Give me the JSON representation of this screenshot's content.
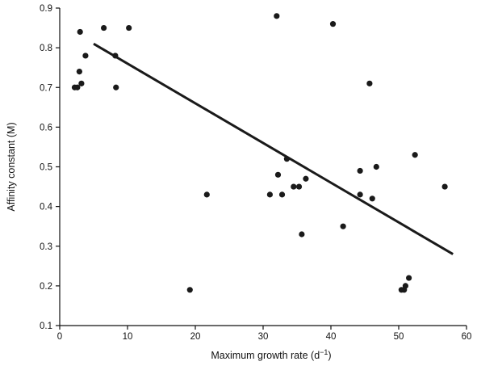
{
  "chart_data": {
    "type": "scatter",
    "title": "",
    "xlabel": "Maximum growth rate (d",
    "xlabel_sup": "−1",
    "xlabel_suffix": ")",
    "ylabel": "Affinity constant (M)",
    "xlim": [
      0,
      60
    ],
    "ylim": [
      0.1,
      0.9
    ],
    "xticks": [
      0,
      10,
      20,
      30,
      40,
      50,
      60
    ],
    "yticks": [
      0.1,
      0.2,
      0.3,
      0.4,
      0.5,
      0.6,
      0.7,
      0.8,
      0.9
    ],
    "ytick_labels": [
      "0.1",
      "0.2",
      "0.3",
      "0.4",
      "0.5",
      "0.6",
      "0.7",
      "0.8",
      "0.9"
    ],
    "grid": false,
    "legend": "none",
    "colors": {
      "points": "#1a1a1a",
      "line": "#1a1a1a",
      "axis": "#111111"
    },
    "points": [
      {
        "x": 2.2,
        "y": 0.7
      },
      {
        "x": 2.6,
        "y": 0.7
      },
      {
        "x": 2.9,
        "y": 0.74
      },
      {
        "x": 3.0,
        "y": 0.84
      },
      {
        "x": 3.2,
        "y": 0.71
      },
      {
        "x": 3.8,
        "y": 0.78
      },
      {
        "x": 6.5,
        "y": 0.85
      },
      {
        "x": 8.2,
        "y": 0.78
      },
      {
        "x": 8.3,
        "y": 0.7
      },
      {
        "x": 10.2,
        "y": 0.85
      },
      {
        "x": 19.2,
        "y": 0.19
      },
      {
        "x": 21.7,
        "y": 0.43
      },
      {
        "x": 31.0,
        "y": 0.43
      },
      {
        "x": 32.0,
        "y": 0.88
      },
      {
        "x": 32.2,
        "y": 0.48
      },
      {
        "x": 32.8,
        "y": 0.43
      },
      {
        "x": 33.5,
        "y": 0.52
      },
      {
        "x": 34.5,
        "y": 0.45
      },
      {
        "x": 35.3,
        "y": 0.45
      },
      {
        "x": 35.7,
        "y": 0.33
      },
      {
        "x": 36.3,
        "y": 0.47
      },
      {
        "x": 40.3,
        "y": 0.86
      },
      {
        "x": 41.8,
        "y": 0.35
      },
      {
        "x": 44.3,
        "y": 0.49
      },
      {
        "x": 44.3,
        "y": 0.43
      },
      {
        "x": 45.7,
        "y": 0.71
      },
      {
        "x": 46.1,
        "y": 0.42
      },
      {
        "x": 46.7,
        "y": 0.5
      },
      {
        "x": 50.4,
        "y": 0.19
      },
      {
        "x": 50.8,
        "y": 0.19
      },
      {
        "x": 51.0,
        "y": 0.2
      },
      {
        "x": 51.5,
        "y": 0.22
      },
      {
        "x": 52.4,
        "y": 0.53
      },
      {
        "x": 56.8,
        "y": 0.45
      }
    ],
    "trendline": {
      "x": [
        5.0,
        58.0
      ],
      "y": [
        0.81,
        0.28
      ]
    }
  }
}
